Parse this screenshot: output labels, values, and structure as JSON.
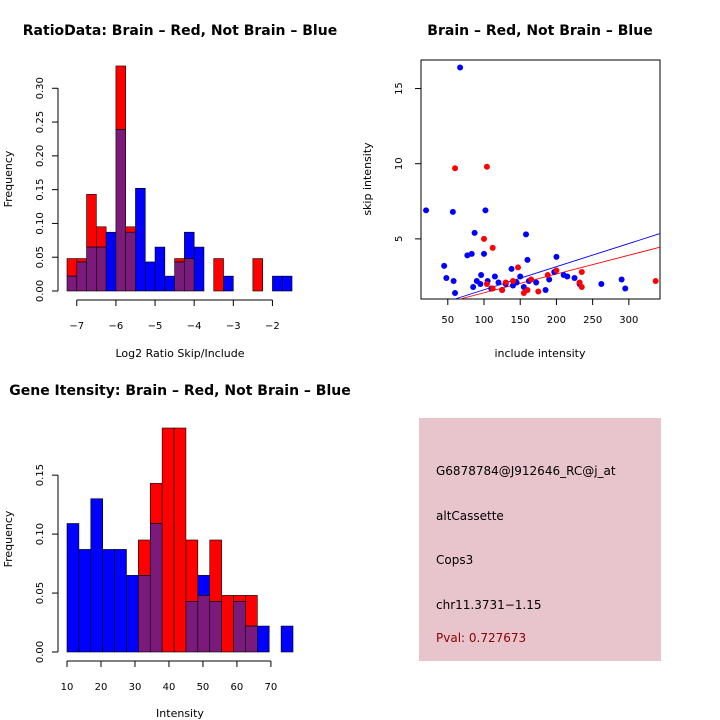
{
  "colors": {
    "brain": "#ff0000",
    "not_brain": "#0000ff",
    "overlap": "#7b1a7b",
    "info_bg": "#e8c4cc",
    "pval": "#8b0000"
  },
  "chart_data": [
    {
      "id": "ratio",
      "type": "bar",
      "title": "RatioData: Brain – Red, Not Brain – Blue",
      "xlabel": "Log2 Ratio Skip/Include",
      "ylabel": "Frequency",
      "bin_width": 0.25,
      "bin_starts": [
        -7.25,
        -7.0,
        -6.75,
        -6.5,
        -6.25,
        -6.0,
        -5.75,
        -5.5,
        -5.25,
        -5.0,
        -4.75,
        -4.5,
        -4.25,
        -4.0,
        -3.75,
        -3.5,
        -3.25,
        -3.0,
        -2.75,
        -2.5,
        -2.25,
        -2.0,
        -1.75
      ],
      "series": [
        {
          "name": "Brain",
          "values": [
            0.048,
            0.048,
            0.143,
            0.095,
            0.0,
            0.333,
            0.095,
            0.0,
            0.0,
            0.0,
            0.0,
            0.048,
            0.048,
            0.0,
            0.0,
            0.048,
            0.0,
            0.0,
            0.0,
            0.048,
            0.0,
            0.0,
            0.0
          ]
        },
        {
          "name": "Not Brain",
          "values": [
            0.022,
            0.043,
            0.065,
            0.065,
            0.087,
            0.239,
            0.087,
            0.152,
            0.043,
            0.065,
            0.022,
            0.043,
            0.087,
            0.065,
            0.0,
            0.0,
            0.022,
            0.0,
            0.0,
            0.0,
            0.0,
            0.022,
            0.022
          ]
        }
      ],
      "xlim": [
        -7.25,
        -1.5
      ],
      "ylim": [
        0,
        0.33
      ],
      "xticks": [
        -7,
        -6,
        -5,
        -4,
        -3,
        -2
      ],
      "xtick_labels": [
        "−7",
        "−6",
        "−5",
        "−4",
        "−3",
        "−2"
      ],
      "yticks": [
        0.0,
        0.05,
        0.1,
        0.15,
        0.2,
        0.25,
        0.3
      ],
      "ytick_labels": [
        "0.00",
        "0.05",
        "0.10",
        "0.15",
        "0.20",
        "0.25",
        "0.30"
      ]
    },
    {
      "id": "scatter",
      "type": "scatter",
      "title": "Brain – Red, Not Brain – Blue",
      "xlabel": "include intensity",
      "ylabel": "skip intensity",
      "xlim": [
        13,
        343
      ],
      "ylim": [
        1.0,
        16.9
      ],
      "xticks": [
        50,
        100,
        150,
        200,
        250,
        300
      ],
      "xtick_labels": [
        "50",
        "100",
        "150",
        "200",
        "250",
        "300"
      ],
      "yticks": [
        5,
        10,
        15
      ],
      "ytick_labels": [
        "5",
        "10",
        "15"
      ],
      "series": [
        {
          "name": "Not Brain",
          "points": [
            [
              67,
              16.4
            ],
            [
              20,
              6.9
            ],
            [
              57,
              6.8
            ],
            [
              102,
              6.9
            ],
            [
              87,
              5.4
            ],
            [
              158,
              5.3
            ],
            [
              100,
              4.0
            ],
            [
              77,
              3.9
            ],
            [
              83,
              4.0
            ],
            [
              200,
              3.8
            ],
            [
              160,
              3.6
            ],
            [
              45,
              3.2
            ],
            [
              138,
              3.0
            ],
            [
              96,
              2.6
            ],
            [
              115,
              2.5
            ],
            [
              150,
              2.5
            ],
            [
              225,
              2.4
            ],
            [
              58,
              2.2
            ],
            [
              90,
              2.2
            ],
            [
              105,
              2.2
            ],
            [
              120,
              2.1
            ],
            [
              130,
              2.0
            ],
            [
              145,
              2.1
            ],
            [
              162,
              2.2
            ],
            [
              190,
              2.3
            ],
            [
              232,
              2.0
            ],
            [
              262,
              2.0
            ],
            [
              290,
              2.3
            ],
            [
              295,
              1.7
            ],
            [
              210,
              2.6
            ],
            [
              48,
              2.4
            ],
            [
              85,
              1.8
            ],
            [
              110,
              1.7
            ],
            [
              125,
              1.6
            ],
            [
              140,
              1.9
            ],
            [
              185,
              1.6
            ],
            [
              60,
              1.4
            ],
            [
              95,
              2.0
            ],
            [
              155,
              1.8
            ],
            [
              197,
              2.8
            ],
            [
              215,
              2.5
            ],
            [
              172,
              2.1
            ]
          ]
        },
        {
          "name": "Brain",
          "points": [
            [
              60,
              9.7
            ],
            [
              104,
              9.8
            ],
            [
              100,
              5.0
            ],
            [
              112,
              4.4
            ],
            [
              147,
              3.1
            ],
            [
              200,
              2.9
            ],
            [
              235,
              2.8
            ],
            [
              188,
              2.6
            ],
            [
              165,
              2.3
            ],
            [
              140,
              2.2
            ],
            [
              232,
              2.1
            ],
            [
              337,
              2.2
            ],
            [
              104,
              2.0
            ],
            [
              112,
              1.7
            ],
            [
              125,
              1.6
            ],
            [
              160,
              1.6
            ],
            [
              175,
              1.5
            ],
            [
              235,
              1.8
            ],
            [
              155,
              1.4
            ],
            [
              130,
              2.1
            ]
          ]
        }
      ],
      "fit_lines": [
        {
          "name": "Not Brain",
          "from": [
            60,
            1.0
          ],
          "to": [
            343,
            5.35
          ]
        },
        {
          "name": "Brain",
          "from": [
            67,
            1.0
          ],
          "to": [
            343,
            4.45
          ]
        }
      ]
    },
    {
      "id": "intensity",
      "type": "bar",
      "title": "Gene Itensity: Brain – Red, Not Brain – Blue",
      "xlabel": "Intensity",
      "ylabel": "Frequency",
      "bin_width": 3.5,
      "bin_starts": [
        10.0,
        13.5,
        17.0,
        20.5,
        24.0,
        27.5,
        31.0,
        34.5,
        38.0,
        41.5,
        45.0,
        48.5,
        52.0,
        55.5,
        59.0,
        62.5,
        66.0,
        69.5,
        73.0
      ],
      "series": [
        {
          "name": "Brain",
          "values": [
            0.0,
            0.0,
            0.0,
            0.0,
            0.0,
            0.0,
            0.095,
            0.143,
            0.19,
            0.19,
            0.095,
            0.048,
            0.095,
            0.048,
            0.048,
            0.048,
            0.0,
            0.0,
            0.0
          ]
        },
        {
          "name": "Not Brain",
          "values": [
            0.109,
            0.087,
            0.13,
            0.087,
            0.087,
            0.065,
            0.065,
            0.109,
            0.0,
            0.0,
            0.043,
            0.065,
            0.043,
            0.0,
            0.043,
            0.022,
            0.022,
            0.0,
            0.022
          ]
        }
      ],
      "xlim": [
        10,
        76.5
      ],
      "ylim": [
        0,
        0.19
      ],
      "xticks": [
        10,
        20,
        30,
        40,
        50,
        60,
        70
      ],
      "xtick_labels": [
        "10",
        "20",
        "30",
        "40",
        "50",
        "60",
        "70"
      ],
      "yticks": [
        0.0,
        0.05,
        0.1,
        0.15
      ],
      "ytick_labels": [
        "0.00",
        "0.05",
        "0.10",
        "0.15"
      ]
    }
  ],
  "info": {
    "probe_id": "G6878784@J912646_RC@j_at",
    "event_type": "altCassette",
    "gene": "Cops3",
    "location": "chr11.3731−1.15",
    "pval": "Pval: 0.727673"
  }
}
